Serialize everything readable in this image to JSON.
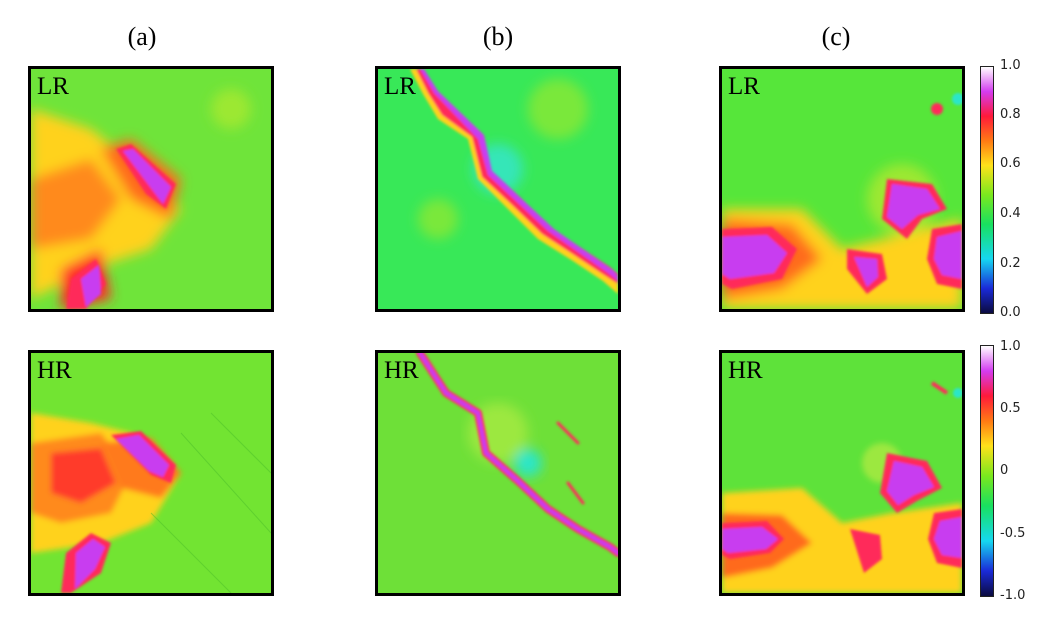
{
  "columns": [
    {
      "label": "(a)"
    },
    {
      "label": "(b)"
    },
    {
      "label": "(c)"
    }
  ],
  "rows": [
    {
      "tag": "LR"
    },
    {
      "tag": "HR"
    }
  ],
  "colorbars": [
    {
      "ticks": [
        "1.0",
        "0.8",
        "0.6",
        "0.4",
        "0.2",
        "0.0"
      ]
    },
    {
      "ticks": [
        "1.0",
        "0.5",
        "0",
        "-0.5",
        "-1.0"
      ]
    }
  ],
  "colors": {
    "background_green": "#5fe83a",
    "high_magenta": "#d23cf0",
    "red": "#ff2a2a",
    "orange": "#ff8a1a",
    "yellow": "#ffd21a",
    "cyan": "#2be6c8"
  }
}
